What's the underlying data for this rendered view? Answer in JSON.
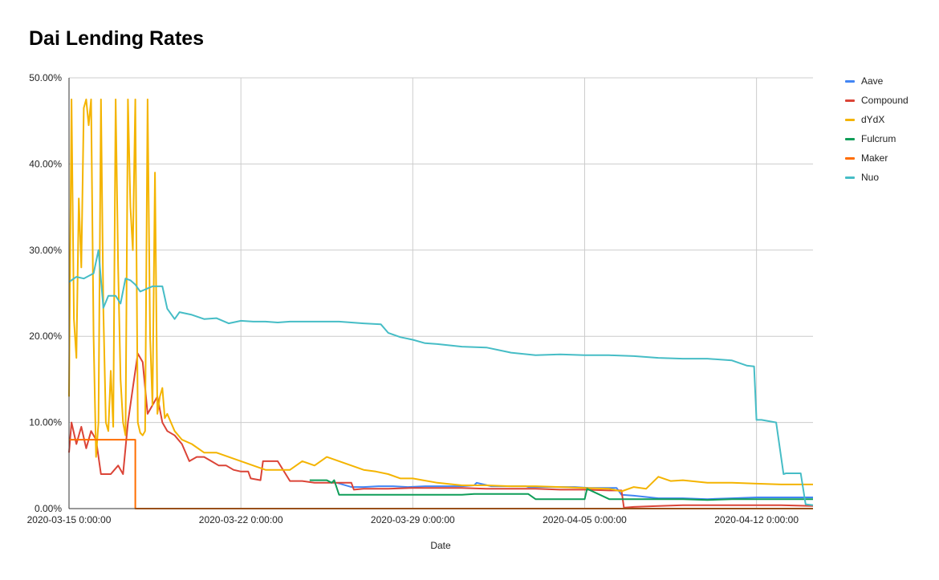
{
  "chart_data": {
    "type": "line",
    "title": "Dai Lending Rates",
    "xlabel": "Date",
    "ylabel": "",
    "xlim": [
      0,
      30.3
    ],
    "ylim": [
      0,
      50
    ],
    "y_ticks": [
      0,
      10,
      20,
      30,
      40,
      50
    ],
    "y_tick_labels": [
      "0.00%",
      "10.00%",
      "20.00%",
      "30.00%",
      "40.00%",
      "50.00%"
    ],
    "x_ticks": [
      0,
      7,
      14,
      21,
      28
    ],
    "x_tick_labels": [
      "2020-03-15 0:00:00",
      "2020-03-22 0:00:00",
      "2020-03-29 0:00:00",
      "2020-04-05 0:00:00",
      "2020-04-12 0:00:00"
    ],
    "x_unit": "days since 2020-03-15",
    "grid": true,
    "legend_position": "right",
    "series": [
      {
        "name": "Aave",
        "color": "#4285f4",
        "x": [
          10.9,
          11.5,
          12.0,
          12.6,
          13.2,
          13.8,
          14.5,
          15.2,
          16.0,
          16.5,
          16.6,
          17.2,
          18.0,
          18.6,
          18.7,
          19.3,
          20.0,
          20.6,
          21.2,
          21.9,
          22.3,
          22.5,
          23.0,
          24.0,
          25.0,
          26.0,
          27.0,
          28.0,
          29.0,
          30.3
        ],
        "y": [
          3.0,
          2.5,
          2.5,
          2.6,
          2.6,
          2.5,
          2.6,
          2.6,
          2.6,
          2.7,
          3.0,
          2.6,
          2.6,
          2.6,
          2.5,
          2.5,
          2.5,
          2.5,
          2.4,
          2.4,
          2.4,
          1.6,
          1.5,
          1.2,
          1.2,
          1.1,
          1.2,
          1.3,
          1.3,
          1.3
        ]
      },
      {
        "name": "Compound",
        "color": "#db4437",
        "x": [
          0.0,
          0.1,
          0.3,
          0.5,
          0.7,
          0.9,
          1.1,
          1.3,
          1.5,
          1.7,
          2.0,
          2.2,
          2.4,
          2.6,
          2.8,
          3.0,
          3.2,
          3.4,
          3.6,
          3.8,
          4.0,
          4.3,
          4.6,
          4.9,
          5.2,
          5.5,
          5.8,
          6.1,
          6.4,
          6.7,
          7.0,
          7.3,
          7.4,
          7.8,
          7.9,
          8.5,
          9.0,
          9.5,
          10.0,
          11.0,
          11.5,
          11.6,
          12.0,
          13.0,
          14.0,
          15.0,
          16.0,
          17.0,
          18.0,
          19.0,
          20.0,
          21.0,
          22.0,
          22.5,
          22.6,
          23.0,
          24.0,
          25.0,
          26.0,
          27.0,
          28.0,
          29.0,
          30.3
        ],
        "y": [
          6.5,
          10.0,
          7.5,
          9.5,
          7.0,
          9.0,
          8.0,
          4.0,
          4.0,
          4.0,
          5.0,
          4.0,
          10.0,
          14.0,
          18.0,
          17.0,
          11.0,
          12.0,
          13.0,
          10.0,
          9.0,
          8.5,
          7.5,
          5.5,
          6.0,
          6.0,
          5.5,
          5.0,
          5.0,
          4.5,
          4.3,
          4.3,
          3.5,
          3.3,
          5.5,
          5.5,
          3.2,
          3.2,
          3.0,
          3.0,
          3.0,
          2.2,
          2.3,
          2.3,
          2.4,
          2.4,
          2.4,
          2.3,
          2.3,
          2.3,
          2.2,
          2.2,
          2.1,
          2.1,
          0.1,
          0.2,
          0.3,
          0.4,
          0.4,
          0.4,
          0.4,
          0.4,
          0.3
        ]
      },
      {
        "name": "dYdX",
        "color": "#f4b400",
        "x": [
          0.0,
          0.1,
          0.2,
          0.3,
          0.4,
          0.5,
          0.6,
          0.7,
          0.8,
          0.9,
          1.0,
          1.1,
          1.2,
          1.3,
          1.4,
          1.5,
          1.6,
          1.7,
          1.8,
          1.9,
          2.0,
          2.1,
          2.2,
          2.3,
          2.4,
          2.5,
          2.6,
          2.7,
          2.8,
          2.9,
          3.0,
          3.1,
          3.2,
          3.3,
          3.4,
          3.5,
          3.6,
          3.7,
          3.8,
          3.9,
          4.0,
          4.3,
          4.6,
          5.0,
          5.5,
          6.0,
          6.5,
          7.0,
          7.5,
          8.0,
          8.5,
          9.0,
          9.5,
          10.0,
          10.5,
          11.0,
          11.5,
          12.0,
          12.5,
          13.0,
          13.5,
          14.0,
          15.0,
          16.0,
          17.0,
          18.0,
          19.0,
          20.0,
          21.0,
          22.0,
          22.5,
          23.0,
          23.5,
          24.0,
          24.5,
          25.0,
          26.0,
          27.0,
          28.0,
          29.0,
          30.3
        ],
        "y": [
          13.0,
          47.5,
          22.0,
          17.5,
          36.0,
          28.0,
          46.5,
          47.5,
          44.5,
          47.5,
          20.0,
          6.0,
          10.0,
          47.5,
          23.0,
          10.0,
          9.0,
          16.0,
          9.5,
          47.5,
          28.0,
          15.0,
          10.0,
          8.5,
          47.5,
          35.0,
          30.0,
          47.5,
          10.0,
          8.8,
          8.5,
          9.0,
          47.5,
          20.0,
          12.0,
          39.0,
          11.0,
          13.0,
          14.0,
          10.5,
          11.0,
          9.0,
          8.0,
          7.5,
          6.5,
          6.5,
          6.0,
          5.5,
          5.0,
          4.5,
          4.5,
          4.5,
          5.5,
          5.0,
          6.0,
          5.5,
          5.0,
          4.5,
          4.3,
          4.0,
          3.5,
          3.5,
          3.0,
          2.7,
          2.7,
          2.6,
          2.6,
          2.5,
          2.4,
          2.3,
          2.0,
          2.5,
          2.3,
          3.7,
          3.2,
          3.3,
          3.0,
          3.0,
          2.9,
          2.8,
          2.8
        ]
      },
      {
        "name": "Fulcrum",
        "color": "#0f9d58",
        "x": [
          9.8,
          10.5,
          10.7,
          10.8,
          11.0,
          11.5,
          12.0,
          13.0,
          14.0,
          15.0,
          16.0,
          16.5,
          17.0,
          18.0,
          18.7,
          19.0,
          20.0,
          21.0,
          21.1,
          22.0,
          23.0,
          24.0,
          25.0,
          26.0,
          27.0,
          28.0,
          29.0,
          30.3
        ],
        "y": [
          3.3,
          3.3,
          3.0,
          3.3,
          1.6,
          1.6,
          1.6,
          1.6,
          1.6,
          1.6,
          1.6,
          1.7,
          1.7,
          1.7,
          1.7,
          1.1,
          1.1,
          1.1,
          2.3,
          1.1,
          1.1,
          1.1,
          1.1,
          1.0,
          1.1,
          1.1,
          1.1,
          1.1
        ]
      },
      {
        "name": "Maker",
        "color": "#ff6d01",
        "x": [
          0.0,
          0.5,
          1.0,
          2.7,
          2.7,
          30.3
        ],
        "y": [
          8.0,
          8.0,
          8.0,
          8.0,
          0.0,
          0.0
        ]
      },
      {
        "name": "Nuo",
        "color": "#46bdc6",
        "x": [
          0.0,
          0.3,
          0.6,
          0.8,
          1.0,
          1.2,
          1.4,
          1.6,
          1.9,
          2.1,
          2.3,
          2.5,
          2.7,
          2.9,
          3.4,
          3.8,
          4.0,
          4.3,
          4.5,
          5.0,
          5.5,
          6.0,
          6.5,
          7.0,
          7.5,
          8.0,
          8.5,
          9.0,
          9.5,
          10.0,
          11.0,
          12.0,
          12.7,
          13.0,
          13.5,
          14.0,
          14.5,
          15.0,
          16.0,
          17.0,
          18.0,
          19.0,
          20.0,
          21.0,
          22.0,
          23.0,
          24.0,
          25.0,
          26.0,
          27.0,
          27.6,
          27.9,
          28.0,
          28.2,
          28.8,
          29.1,
          29.2,
          29.8,
          30.0,
          30.3
        ],
        "y": [
          26.3,
          26.9,
          26.7,
          27.0,
          27.3,
          30.0,
          23.3,
          24.7,
          24.7,
          23.8,
          26.7,
          26.5,
          26.0,
          25.2,
          25.8,
          25.8,
          23.2,
          22.0,
          22.8,
          22.5,
          22.0,
          22.1,
          21.5,
          21.8,
          21.7,
          21.7,
          21.6,
          21.7,
          21.7,
          21.7,
          21.7,
          21.5,
          21.4,
          20.4,
          19.9,
          19.6,
          19.2,
          19.1,
          18.8,
          18.7,
          18.1,
          17.8,
          17.9,
          17.8,
          17.8,
          17.7,
          17.5,
          17.4,
          17.4,
          17.2,
          16.6,
          16.5,
          10.3,
          10.3,
          10.0,
          4.0,
          4.1,
          4.1,
          0.5,
          0.4
        ]
      }
    ]
  }
}
